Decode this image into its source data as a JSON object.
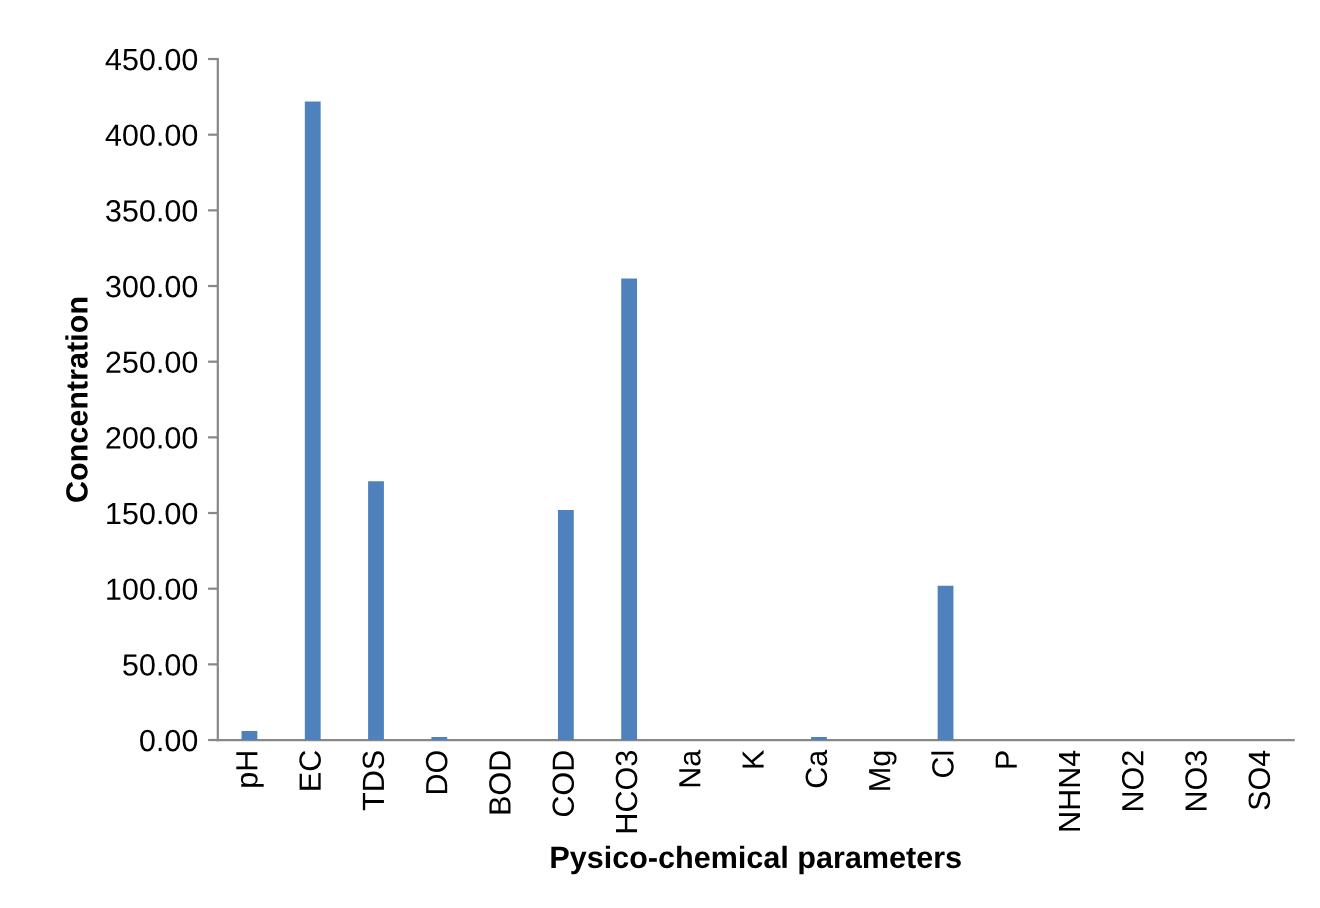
{
  "chart_data": {
    "type": "bar",
    "categories": [
      "pH",
      "EC",
      "TDS",
      "DO",
      "BOD",
      "COD",
      "HCO3",
      "Na",
      "K",
      "Ca",
      "Mg",
      "Cl",
      "P",
      "NHN4",
      "NO2",
      "NO3",
      "SO4"
    ],
    "values": [
      6,
      422,
      171,
      2,
      0,
      152,
      305,
      0,
      0,
      2,
      0,
      102,
      0,
      0,
      0,
      0,
      0
    ],
    "color": "#4f81bd",
    "xlabel": "Pysico-chemical parameters",
    "ylabel": "Concentration",
    "ylim": [
      0,
      450
    ],
    "yticks": [
      {
        "value": 0,
        "label": "0.00"
      },
      {
        "value": 50,
        "label": "50.00"
      },
      {
        "value": 100,
        "label": "100.00"
      },
      {
        "value": 150,
        "label": "150.00"
      },
      {
        "value": 200,
        "label": "200.00"
      },
      {
        "value": 250,
        "label": "250.00"
      },
      {
        "value": 300,
        "label": "300.00"
      },
      {
        "value": 350,
        "label": "350.00"
      },
      {
        "value": 400,
        "label": "400.00"
      },
      {
        "value": 450,
        "label": "450.00"
      }
    ],
    "grid": false,
    "legend": false
  }
}
